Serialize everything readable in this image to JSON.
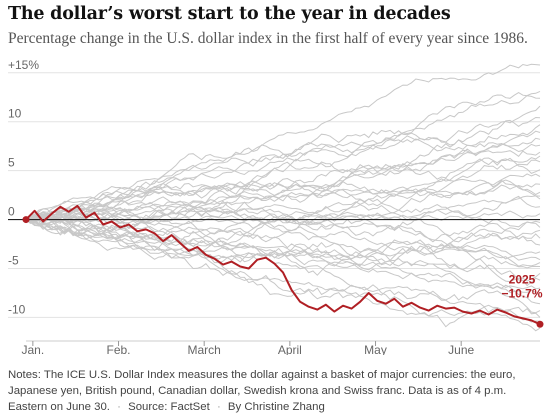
{
  "title": "The dollar’s worst start to the year in decades",
  "subtitle": "Percentage change in the U.S. dollar index in the first half of every year since 1986.",
  "notes": {
    "text": "Notes: The ICE U.S. Dollar Index measures the dollar against a basket of major currencies: the euro, Japanese yen, British pound, Canadian dollar, Swedish krona and Swiss franc. Data is as of 4 p.m. Eastern on June 30.",
    "source": "Source: FactSet",
    "byline": "By Christine Zhang"
  },
  "colors": {
    "highlight": "#b01f24",
    "background_lines": "#c8c8c8",
    "zero_line": "#222222",
    "grid": "#e3e3e3"
  },
  "chart_data": {
    "type": "line",
    "x_unit": "month",
    "xlim": [
      0,
      6
    ],
    "ylim": [
      -12,
      16
    ],
    "y_ticks": [
      {
        "value": 15,
        "label": "+15%"
      },
      {
        "value": 10,
        "label": "10"
      },
      {
        "value": 5,
        "label": "5"
      },
      {
        "value": 0,
        "label": "0"
      },
      {
        "value": -5,
        "label": "-5"
      },
      {
        "value": -10,
        "label": "-10"
      }
    ],
    "x_ticks": [
      {
        "value": 0,
        "label": "Jan."
      },
      {
        "value": 1,
        "label": "Feb."
      },
      {
        "value": 2,
        "label": "March"
      },
      {
        "value": 3,
        "label": "April"
      },
      {
        "value": 4,
        "label": "May"
      },
      {
        "value": 5,
        "label": "June"
      }
    ],
    "grid": "horizontal",
    "highlight": {
      "name": "2025",
      "end_label": "2025",
      "end_value_label": "−10.7%",
      "x": [
        0,
        0.1,
        0.2,
        0.3,
        0.4,
        0.5,
        0.6,
        0.7,
        0.8,
        0.9,
        1.0,
        1.1,
        1.2,
        1.3,
        1.4,
        1.5,
        1.6,
        1.7,
        1.8,
        1.9,
        2.0,
        2.1,
        2.2,
        2.3,
        2.4,
        2.5,
        2.6,
        2.7,
        2.8,
        2.9,
        3.0,
        3.1,
        3.2,
        3.3,
        3.4,
        3.5,
        3.6,
        3.7,
        3.8,
        3.9,
        4.0,
        4.1,
        4.2,
        4.3,
        4.4,
        4.5,
        4.6,
        4.7,
        4.8,
        4.9,
        5.0,
        5.1,
        5.2,
        5.3,
        5.4,
        5.5,
        5.6,
        5.7,
        5.8,
        5.9,
        6.0
      ],
      "y": [
        0,
        0.9,
        -0.2,
        0.6,
        1.3,
        0.8,
        1.4,
        0.2,
        0.7,
        -0.5,
        -0.2,
        -0.8,
        -0.5,
        -1.2,
        -1.0,
        -1.4,
        -2.2,
        -1.6,
        -2.4,
        -3.2,
        -2.8,
        -3.6,
        -4.0,
        -4.6,
        -4.3,
        -4.8,
        -5.0,
        -4.1,
        -3.9,
        -4.5,
        -5.4,
        -7.2,
        -8.4,
        -8.9,
        -9.2,
        -8.7,
        -9.4,
        -8.8,
        -9.1,
        -8.4,
        -7.5,
        -8.3,
        -8.6,
        -8.1,
        -8.9,
        -8.5,
        -9.0,
        -9.3,
        -8.8,
        -9.1,
        -9.0,
        -9.4,
        -9.6,
        -9.3,
        -9.7,
        -9.2,
        -9.5,
        -9.9,
        -10.1,
        -10.3,
        -10.7
      ]
    },
    "background_end_values": [
      15.8,
      13.1,
      11.6,
      10.4,
      9.7,
      8.9,
      7.6,
      6.5,
      5.9,
      5.1,
      4.4,
      3.6,
      2.8,
      2.1,
      1.3,
      0.6,
      -0.3,
      -1.1,
      -1.9,
      -2.6,
      -3.3,
      -4.1,
      -4.8,
      -5.5,
      -6.2,
      -7.0,
      -7.8,
      -8.6,
      -9.3,
      -10.0,
      -10.4,
      -11.1,
      12.4,
      6.9,
      -0.8,
      2.4,
      -4.4,
      8.2
    ]
  }
}
